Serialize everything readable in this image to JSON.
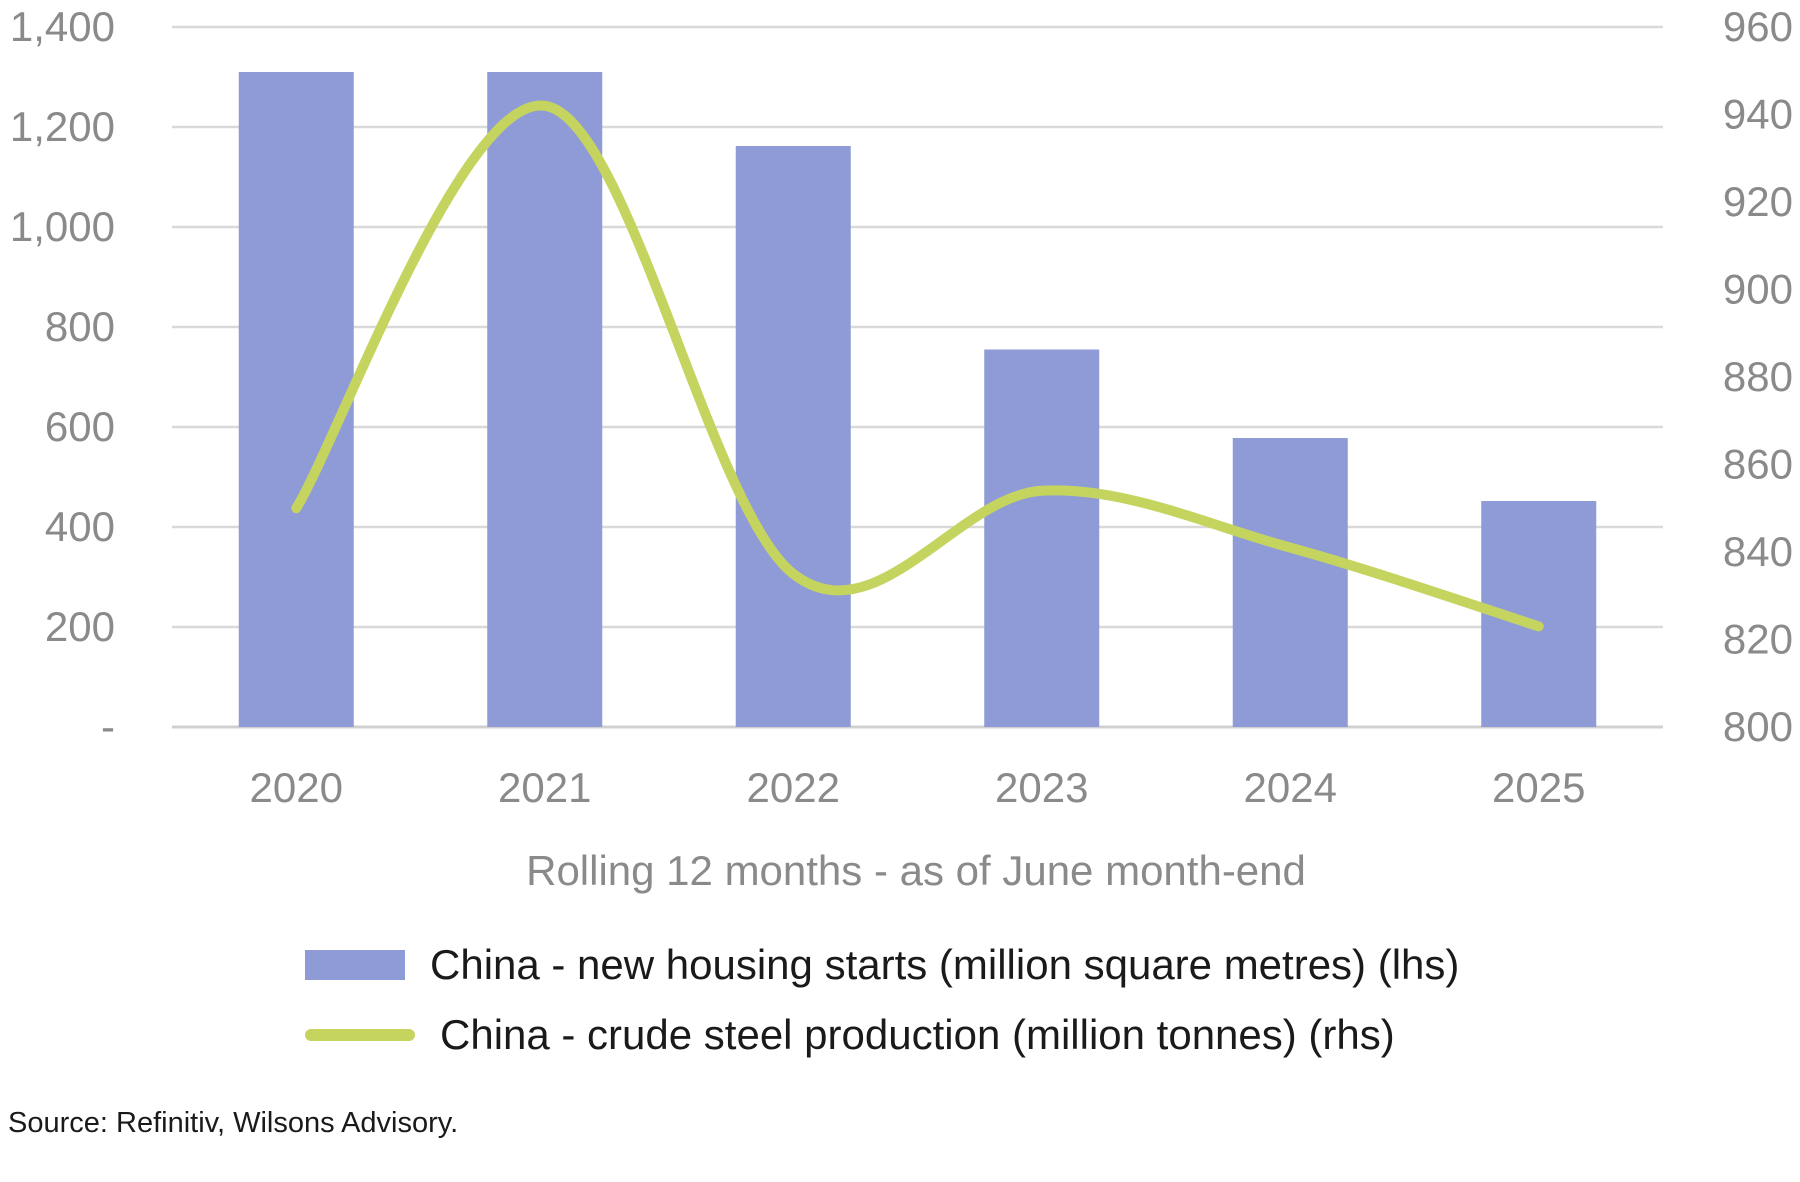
{
  "chart_data": {
    "type": "bar",
    "categories": [
      "2020",
      "2021",
      "2022",
      "2023",
      "2024",
      "2025"
    ],
    "series": [
      {
        "name": "China - new housing starts (million square metres) (lhs)",
        "type": "bar",
        "axis": "left",
        "color": "#8e9bd6",
        "values": [
          1310,
          1310,
          1162,
          755,
          578,
          452
        ]
      },
      {
        "name": "China - crude steel production (million tonnes) (rhs)",
        "type": "line",
        "axis": "right",
        "color": "#c5d45f",
        "smooth": true,
        "values": [
          850,
          942,
          835,
          854,
          841,
          823
        ]
      }
    ],
    "xlabel": "Rolling 12 months - as of June month-end",
    "y_left": {
      "lim": [
        0,
        1400
      ],
      "ticks": [
        "-",
        "200",
        "400",
        "600",
        "800",
        "1,000",
        "1,200",
        "1,400"
      ]
    },
    "y_right": {
      "lim": [
        800,
        960
      ],
      "ticks": [
        "800",
        "820",
        "840",
        "860",
        "880",
        "900",
        "920",
        "940",
        "960"
      ]
    },
    "grid": true,
    "legend_position": "bottom"
  },
  "source": "Source: Refinitiv, Wilsons Advisory."
}
